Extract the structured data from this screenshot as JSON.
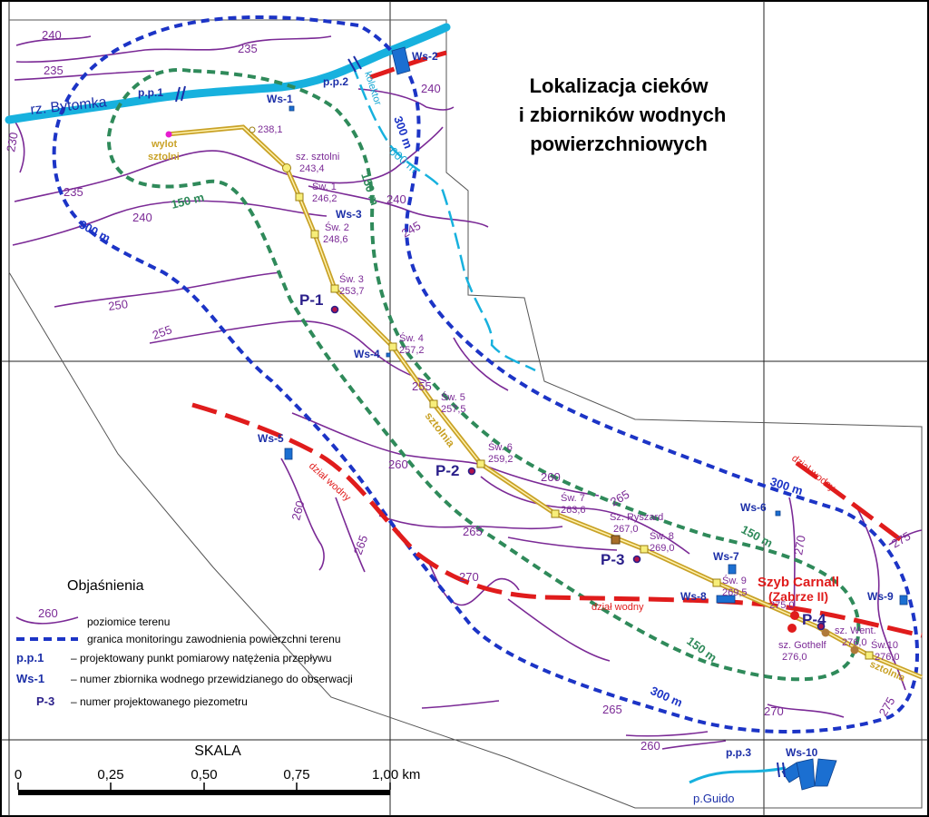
{
  "title": {
    "lines": [
      "Lokalizacja cieków",
      "i zbiorników wodnych",
      "powierzchniowych"
    ]
  },
  "river_labels": {
    "bytomka": "rz. Bytomka",
    "guido": "p.Guido",
    "kolektor": "kolektor"
  },
  "measurement_points": {
    "pp1": "p.p.1",
    "pp2": "p.p.2",
    "pp3": "p.p.3"
  },
  "reservoirs": {
    "ws1": "Ws-1",
    "ws2": "Ws-2",
    "ws3": "Ws-3",
    "ws4": "Ws-4",
    "ws5": "Ws-5",
    "ws6": "Ws-6",
    "ws7": "Ws-7",
    "ws8": "Ws-8",
    "ws9": "Ws-9",
    "ws10": "Ws-10"
  },
  "piezometers": {
    "p1": "P-1",
    "p2": "P-2",
    "p3": "P-3",
    "p4": "P-4"
  },
  "tunnel": {
    "outlet": [
      "wylot",
      "sztolni"
    ],
    "label_1": "sztolnia",
    "label_2": "sztolnia",
    "stations": {
      "start": "238,1",
      "sz_sztolni": [
        "sz. sztolni",
        "243,4"
      ],
      "sw1": [
        "Św. 1",
        "246,2"
      ],
      "sw2": [
        "Św. 2",
        "248,6"
      ],
      "sw3": [
        "Św. 3",
        "253,7"
      ],
      "sw4": [
        "Św. 4",
        "257,2"
      ],
      "sw5": [
        "Św. 5",
        "257,5"
      ],
      "sw6": [
        "Św. 6",
        "259,2"
      ],
      "sw7": [
        "Św. 7",
        "263,6"
      ],
      "ryszard": [
        "Sz. Ryszard",
        "267,0"
      ],
      "sw8": [
        "Św. 8",
        "269,0"
      ],
      "sw9": [
        "Św. 9",
        "269,5"
      ],
      "carnall_elev": "275,0",
      "went": [
        "sz. Went.",
        "276,0"
      ],
      "gothelf": [
        "sz. Gothelf",
        "276,0"
      ],
      "sw10": [
        "Św.10",
        "276,0"
      ]
    }
  },
  "shaft": {
    "name": "Szyb Carnall",
    "sub": "(Zabrze II)"
  },
  "contour_labels": {
    "c240a": "240",
    "c235a": "235",
    "c235b": "235",
    "c230": "230",
    "c240b": "240",
    "c235c": "235",
    "c240c": "240",
    "c240d": "240",
    "c245": "245",
    "c250": "250",
    "c255a": "255",
    "c255b": "255",
    "c260a": "260",
    "c260b": "260",
    "c265a": "265",
    "c265b": "265",
    "c265c": "265",
    "c270a": "270",
    "c270b": "270",
    "c265d": "265",
    "c260c": "260",
    "c260d": "260",
    "c270c": "270",
    "c275a": "275",
    "c275b": "275"
  },
  "buffers": {
    "b300a": "300 m",
    "b300b": "300 m",
    "b300c": "300 m",
    "b300d": "300 m",
    "b150a": "150 m",
    "b150b": "150 m",
    "b150c": "150 m",
    "b150d": "150 m",
    "b600": "600 m"
  },
  "watershed_labels": {
    "w1": "dział wodny",
    "w2": "dział wodny",
    "w3": "dział wodny"
  },
  "legend": {
    "title": "Objaśnienia",
    "contour_sample": "260",
    "items": [
      {
        "symbol": "contour",
        "text": "poziomice terenu"
      },
      {
        "symbol": "boundary",
        "text": "granica monitoringu zawodnienia powierzchni terenu"
      },
      {
        "symbol": "code",
        "code": "p.p.1",
        "text": "–  projektowany punkt pomiarowy natężenia przepływu"
      },
      {
        "symbol": "code",
        "code": "Ws-1",
        "text": "–  numer zbiornika wodnego przewidzianego do obserwacji"
      },
      {
        "symbol": "code",
        "code": "P-3",
        "text": "–  numer projektowanego piezometru"
      }
    ]
  },
  "scale": {
    "title": "SKALA",
    "ticks": [
      "0",
      "0,25",
      "0,50",
      "0,75",
      "1,00 km"
    ]
  },
  "colors": {
    "contour": "#7b2a96",
    "boundary_300": "#1c34c6",
    "buffer_150": "#2f8a5a",
    "river": "#17b1de",
    "tunnel": "#c9a227",
    "watershed": "#e01c1c",
    "reservoir": "#1b6fd1",
    "piezometer": "#2a1f8a"
  }
}
